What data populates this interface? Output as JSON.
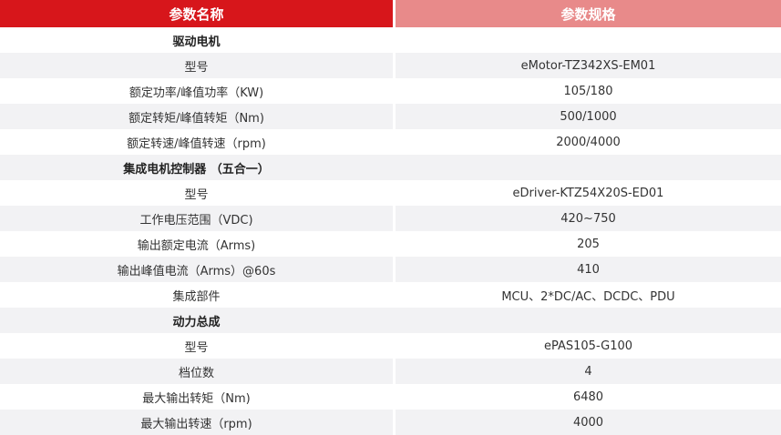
{
  "header": {
    "name": "参数名称",
    "spec": "参数规格"
  },
  "rows": [
    {
      "name": "驱动电机",
      "value": "",
      "section": true
    },
    {
      "name": "型号",
      "value": "eMotor-TZ342XS-EM01"
    },
    {
      "name": "额定功率/峰值功率（KW)",
      "value": "105/180"
    },
    {
      "name": "额定转矩/峰值转矩（Nm)",
      "value": "500/1000"
    },
    {
      "name": "额定转速/峰值转速（rpm)",
      "value": "2000/4000"
    },
    {
      "name": "集成电机控制器 （五合一）",
      "value": "",
      "section": true
    },
    {
      "name": "型号",
      "value": "eDriver-KTZ54X20S-ED01"
    },
    {
      "name": "工作电压范围（VDC)",
      "value": "420~750"
    },
    {
      "name": "输出额定电流（Arms)",
      "value": "205"
    },
    {
      "name": "输出峰值电流（Arms）@60s",
      "value": "410"
    },
    {
      "name": "集成部件",
      "value": "MCU、2*DC/AC、DCDC、PDU"
    },
    {
      "name": "动力总成",
      "value": "",
      "section": true
    },
    {
      "name": "型号",
      "value": "ePAS105-G100"
    },
    {
      "name": "档位数",
      "value": "4"
    },
    {
      "name": "最大输出转矩（Nm)",
      "value": "6480"
    },
    {
      "name": "最大输出转速（rpm)",
      "value": "4000"
    }
  ],
  "colors": {
    "header_left": "#d7161b",
    "header_right": "#e88a8a",
    "stripe": "#f2f2f4"
  }
}
